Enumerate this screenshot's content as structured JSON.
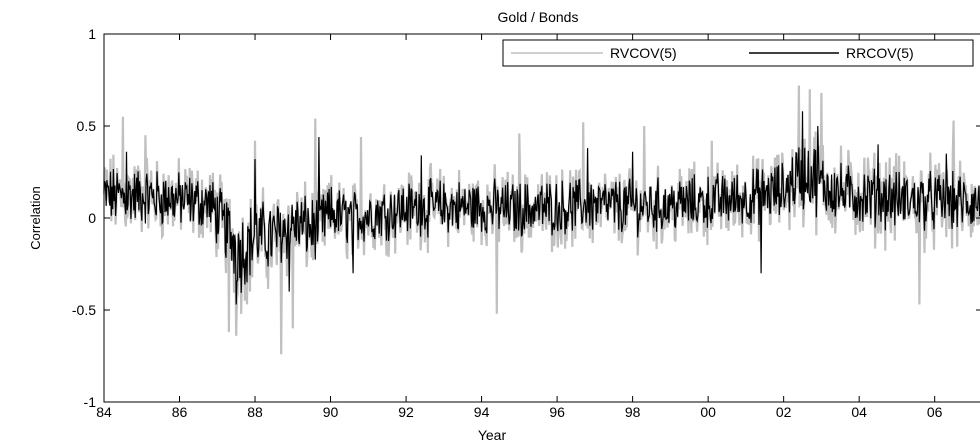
{
  "chart_data": {
    "type": "line",
    "title": "Gold / Bonds",
    "xlabel": "Year",
    "ylabel": "Correlation",
    "xlim": [
      1984,
      2007.2
    ],
    "ylim": [
      -1,
      1
    ],
    "yticks": [
      {
        "value": 1,
        "label": "1"
      },
      {
        "value": 0.5,
        "label": "0.5"
      },
      {
        "value": 0,
        "label": "0"
      },
      {
        "value": -0.5,
        "label": "-0.5"
      },
      {
        "value": -1,
        "label": "-1"
      }
    ],
    "xticks": [
      {
        "value": 1984,
        "label": "84"
      },
      {
        "value": 1986,
        "label": "86"
      },
      {
        "value": 1988,
        "label": "88"
      },
      {
        "value": 1990,
        "label": "90"
      },
      {
        "value": 1992,
        "label": "92"
      },
      {
        "value": 1994,
        "label": "94"
      },
      {
        "value": 1996,
        "label": "96"
      },
      {
        "value": 1998,
        "label": "98"
      },
      {
        "value": 2000,
        "label": "00"
      },
      {
        "value": 2002,
        "label": "02"
      },
      {
        "value": 2004,
        "label": "04"
      },
      {
        "value": 2006,
        "label": "06"
      }
    ],
    "legend": {
      "position": "top-right"
    },
    "grid": false,
    "series": [
      {
        "name": "RVCOV(5)",
        "color": "#c0c0c0",
        "x": [
          1984.0,
          1985.0,
          1986.0,
          1986.8,
          1987.3,
          1987.6,
          1988.0,
          1988.5,
          1989.0,
          1989.6,
          1990.0,
          1990.5,
          1991.0,
          1992.0,
          1993.0,
          1994.0,
          1995.0,
          1996.0,
          1997.0,
          1998.0,
          1999.0,
          2000.0,
          2001.0,
          2002.0,
          2002.4,
          2002.7,
          2003.0,
          2003.5,
          2004.0,
          2005.0,
          2006.0,
          2007.0
        ],
        "center": [
          0.12,
          0.12,
          0.1,
          0.08,
          -0.08,
          -0.2,
          -0.12,
          -0.12,
          -0.04,
          -0.08,
          0.02,
          -0.02,
          0.01,
          0.05,
          0.06,
          0.06,
          0.04,
          0.05,
          0.06,
          0.05,
          0.06,
          0.08,
          0.1,
          0.14,
          0.22,
          0.24,
          0.18,
          0.14,
          0.12,
          0.1,
          0.08,
          0.06
        ],
        "amp": [
          0.28,
          0.28,
          0.26,
          0.26,
          0.34,
          0.38,
          0.32,
          0.34,
          0.3,
          0.3,
          0.26,
          0.26,
          0.26,
          0.26,
          0.26,
          0.26,
          0.26,
          0.26,
          0.26,
          0.26,
          0.26,
          0.26,
          0.26,
          0.28,
          0.34,
          0.36,
          0.32,
          0.3,
          0.3,
          0.3,
          0.3,
          0.3
        ],
        "spikes": [
          {
            "x": 1984.5,
            "y": 0.55
          },
          {
            "x": 1985.1,
            "y": 0.45
          },
          {
            "x": 1987.3,
            "y": -0.62
          },
          {
            "x": 1987.5,
            "y": -0.64
          },
          {
            "x": 1988.0,
            "y": 0.42
          },
          {
            "x": 1988.7,
            "y": -0.74
          },
          {
            "x": 1989.0,
            "y": -0.6
          },
          {
            "x": 1989.6,
            "y": 0.54
          },
          {
            "x": 1990.8,
            "y": 0.44
          },
          {
            "x": 1994.4,
            "y": -0.52
          },
          {
            "x": 1995.0,
            "y": 0.46
          },
          {
            "x": 1996.7,
            "y": 0.52
          },
          {
            "x": 1998.3,
            "y": 0.5
          },
          {
            "x": 2000.1,
            "y": 0.42
          },
          {
            "x": 2002.4,
            "y": 0.72
          },
          {
            "x": 2002.7,
            "y": 0.7
          },
          {
            "x": 2003.0,
            "y": 0.68
          },
          {
            "x": 2005.6,
            "y": -0.47
          },
          {
            "x": 2006.5,
            "y": 0.53
          }
        ]
      },
      {
        "name": "RRCOV(5)",
        "color": "#000000",
        "x": [
          1984.0,
          1985.0,
          1986.0,
          1986.8,
          1987.3,
          1987.6,
          1988.0,
          1988.5,
          1989.0,
          1989.6,
          1990.0,
          1990.5,
          1991.0,
          1992.0,
          1993.0,
          1994.0,
          1995.0,
          1996.0,
          1997.0,
          1998.0,
          1999.0,
          2000.0,
          2001.0,
          2002.0,
          2002.4,
          2002.7,
          2003.0,
          2003.5,
          2004.0,
          2005.0,
          2006.0,
          2007.0
        ],
        "center": [
          0.12,
          0.12,
          0.1,
          0.08,
          -0.08,
          -0.18,
          -0.1,
          -0.1,
          -0.03,
          -0.06,
          0.03,
          0.0,
          0.02,
          0.05,
          0.06,
          0.06,
          0.05,
          0.06,
          0.07,
          0.06,
          0.07,
          0.09,
          0.11,
          0.15,
          0.24,
          0.24,
          0.18,
          0.14,
          0.12,
          0.1,
          0.09,
          0.08
        ],
        "amp": [
          0.18,
          0.18,
          0.17,
          0.17,
          0.22,
          0.26,
          0.22,
          0.22,
          0.2,
          0.2,
          0.17,
          0.17,
          0.17,
          0.17,
          0.17,
          0.17,
          0.17,
          0.17,
          0.17,
          0.17,
          0.17,
          0.17,
          0.17,
          0.18,
          0.22,
          0.24,
          0.2,
          0.18,
          0.18,
          0.18,
          0.18,
          0.18
        ],
        "spikes": [
          {
            "x": 1984.6,
            "y": 0.36
          },
          {
            "x": 1987.5,
            "y": -0.47
          },
          {
            "x": 1988.0,
            "y": 0.32
          },
          {
            "x": 1988.9,
            "y": -0.4
          },
          {
            "x": 1989.7,
            "y": 0.44
          },
          {
            "x": 1990.6,
            "y": -0.3
          },
          {
            "x": 1992.4,
            "y": 0.34
          },
          {
            "x": 1996.8,
            "y": 0.38
          },
          {
            "x": 1998.0,
            "y": 0.36
          },
          {
            "x": 2002.5,
            "y": 0.58
          },
          {
            "x": 2002.9,
            "y": 0.5
          },
          {
            "x": 2001.4,
            "y": -0.3
          },
          {
            "x": 2004.5,
            "y": 0.4
          },
          {
            "x": 2006.3,
            "y": 0.35
          }
        ]
      }
    ]
  }
}
